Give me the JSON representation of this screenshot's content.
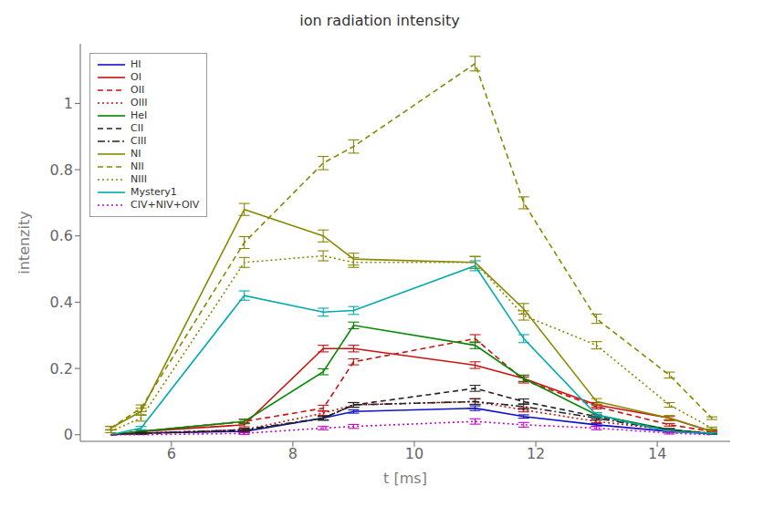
{
  "chart_data": {
    "type": "line",
    "title": "ion radiation intensity",
    "x_label": "t [ms]",
    "y_label": "intenzity",
    "xlim": [
      4.5,
      15.2
    ],
    "ylim": [
      -0.02,
      1.18
    ],
    "xticks": [
      6,
      8,
      10,
      12,
      14
    ],
    "yticks": [
      0,
      0.2,
      0.4,
      0.6,
      0.8,
      1
    ],
    "grid": false,
    "legend": "upper left",
    "x": [
      5.0,
      5.5,
      7.2,
      8.5,
      9.0,
      11.0,
      11.8,
      13.0,
      14.2,
      14.9
    ],
    "series": [
      {
        "name": "HI",
        "color": "#1010cc",
        "line_style": "solid",
        "values": [
          0.0,
          0.005,
          0.01,
          0.05,
          0.07,
          0.08,
          0.055,
          0.03,
          0.01,
          0.003
        ],
        "yerr": [
          0.0,
          0.003,
          0.003,
          0.005,
          0.005,
          0.007,
          0.005,
          0.004,
          0.003,
          0.002
        ]
      },
      {
        "name": "OI",
        "color": "#cc1010",
        "line_style": "solid",
        "values": [
          0.0,
          0.01,
          0.03,
          0.26,
          0.26,
          0.21,
          0.17,
          0.09,
          0.05,
          0.01
        ],
        "yerr": [
          0.0,
          0.004,
          0.006,
          0.01,
          0.01,
          0.01,
          0.01,
          0.007,
          0.005,
          0.003
        ]
      },
      {
        "name": "OII",
        "color": "#cc1010",
        "line_style": "dashed",
        "values": [
          0.0,
          0.01,
          0.04,
          0.08,
          0.22,
          0.29,
          0.165,
          0.085,
          0.03,
          0.01
        ],
        "yerr": [
          0.0,
          0.004,
          0.007,
          0.009,
          0.009,
          0.012,
          0.009,
          0.007,
          0.004,
          0.002
        ]
      },
      {
        "name": "OIII",
        "color": "#cc1010",
        "line_style": "dotted",
        "values": [
          0.0,
          0.005,
          0.015,
          0.065,
          0.09,
          0.1,
          0.075,
          0.04,
          0.015,
          0.004
        ],
        "yerr": [
          0.0,
          0.003,
          0.004,
          0.007,
          0.007,
          0.008,
          0.006,
          0.004,
          0.003,
          0.002
        ]
      },
      {
        "name": "HeI",
        "color": "#008800",
        "line_style": "solid",
        "values": [
          0.0,
          0.01,
          0.04,
          0.19,
          0.33,
          0.27,
          0.17,
          0.06,
          0.015,
          0.004
        ],
        "yerr": [
          0.0,
          0.004,
          0.006,
          0.009,
          0.01,
          0.01,
          0.009,
          0.006,
          0.003,
          0.002
        ]
      },
      {
        "name": "CII",
        "color": "#222222",
        "line_style": "dashed",
        "values": [
          0.0,
          0.004,
          0.012,
          0.05,
          0.09,
          0.14,
          0.1,
          0.055,
          0.015,
          0.004
        ],
        "yerr": [
          0.0,
          0.003,
          0.004,
          0.006,
          0.007,
          0.009,
          0.008,
          0.005,
          0.003,
          0.002
        ]
      },
      {
        "name": "CIII",
        "color": "#222222",
        "line_style": "dashdot",
        "values": [
          0.0,
          0.004,
          0.015,
          0.05,
          0.09,
          0.1,
          0.085,
          0.05,
          0.013,
          0.003
        ],
        "yerr": [
          0.0,
          0.003,
          0.004,
          0.006,
          0.007,
          0.009,
          0.008,
          0.005,
          0.003,
          0.002
        ]
      },
      {
        "name": "NI",
        "color": "#888800",
        "line_style": "solid",
        "values": [
          0.02,
          0.07,
          0.68,
          0.6,
          0.53,
          0.52,
          0.38,
          0.1,
          0.05,
          0.01
        ],
        "yerr": [
          0.005,
          0.01,
          0.018,
          0.018,
          0.018,
          0.018,
          0.016,
          0.009,
          0.008,
          0.004
        ]
      },
      {
        "name": "NII",
        "color": "#888800",
        "line_style": "dashed",
        "values": [
          0.02,
          0.08,
          0.58,
          0.82,
          0.87,
          1.12,
          0.7,
          0.35,
          0.18,
          0.05
        ],
        "yerr": [
          0.005,
          0.01,
          0.018,
          0.02,
          0.02,
          0.022,
          0.018,
          0.014,
          0.009,
          0.004
        ]
      },
      {
        "name": "NIII",
        "color": "#888800",
        "line_style": "dotted",
        "values": [
          0.01,
          0.05,
          0.52,
          0.54,
          0.52,
          0.52,
          0.36,
          0.27,
          0.09,
          0.02
        ],
        "yerr": [
          0.004,
          0.009,
          0.015,
          0.015,
          0.015,
          0.018,
          0.014,
          0.011,
          0.007,
          0.003
        ]
      },
      {
        "name": "Mystery1",
        "color": "#00aaaa",
        "line_style": "solid",
        "values": [
          0.0,
          0.02,
          0.42,
          0.37,
          0.375,
          0.51,
          0.29,
          0.06,
          0.01,
          0.004
        ],
        "yerr": [
          0.0,
          0.005,
          0.014,
          0.012,
          0.012,
          0.015,
          0.012,
          0.007,
          0.004,
          0.002
        ]
      },
      {
        "name": "CIV+NIV+OIV",
        "color": "#cc00cc",
        "line_style": "dotted",
        "values": [
          0.0,
          0.0,
          0.004,
          0.02,
          0.025,
          0.04,
          0.03,
          0.02,
          0.005,
          0.0
        ],
        "yerr": [
          0.0,
          0.0,
          0.003,
          0.005,
          0.006,
          0.008,
          0.007,
          0.005,
          0.003,
          0.0
        ]
      }
    ]
  }
}
